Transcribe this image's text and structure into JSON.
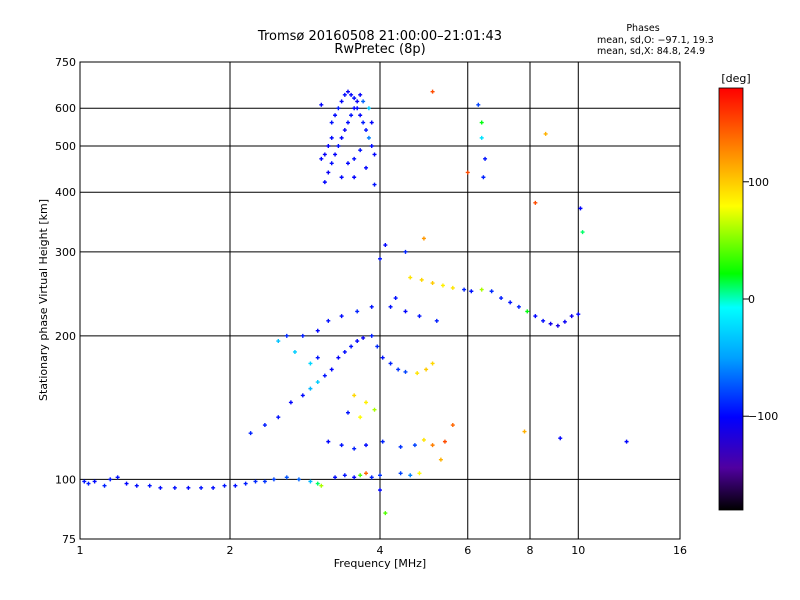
{
  "header": {
    "title_line1": "Tromsø 20160508 21:00:00–21:01:43",
    "title_line2": "RwPretec (8p)",
    "phase_block_title": "Phases",
    "phase_o": "mean, sd,O: −97.1, 19.3",
    "phase_x": "mean, sd,X:  84.8, 24.9"
  },
  "colorbar": {
    "unit": "[deg]",
    "tick_labels": [
      "100",
      "0",
      "−100"
    ],
    "tick_values": [
      100,
      0,
      -100
    ],
    "range": [
      -180,
      180
    ],
    "colormap": "rainbow"
  },
  "chart_data": {
    "type": "scatter",
    "xlabel": "Frequency [MHz]",
    "ylabel": "Stationary phase Virtual Height [km]",
    "x_scale": "log",
    "y_scale": "log",
    "xlim": [
      1,
      16
    ],
    "ylim": [
      75,
      750
    ],
    "x_ticks": [
      1,
      2,
      4,
      6,
      8,
      10,
      16
    ],
    "x_tick_labels": [
      "1",
      "2",
      "4",
      "6",
      "8",
      "10",
      "16"
    ],
    "y_ticks": [
      75,
      100,
      200,
      300,
      400,
      500,
      600,
      750
    ],
    "y_tick_labels": [
      "75",
      "100",
      "200",
      "300",
      "400",
      "500",
      "600",
      "750"
    ],
    "grid_x": [
      2,
      4,
      6,
      8,
      10
    ],
    "grid_y": [
      100,
      200,
      300,
      400,
      500,
      600
    ],
    "color_variable": "phase [deg]",
    "series": [
      {
        "points": [
          [
            1.02,
            99,
            -95
          ],
          [
            1.04,
            98,
            -92
          ],
          [
            1.07,
            99,
            -98
          ],
          [
            1.12,
            97,
            -90
          ],
          [
            1.15,
            100,
            -94
          ],
          [
            1.19,
            101,
            -96
          ],
          [
            1.24,
            98,
            -100
          ],
          [
            1.3,
            97,
            -97
          ],
          [
            1.38,
            97,
            -95
          ],
          [
            1.45,
            96,
            -98
          ],
          [
            1.55,
            96,
            -96
          ],
          [
            1.65,
            96,
            -99
          ],
          [
            1.75,
            96,
            -95
          ],
          [
            1.85,
            96,
            -97
          ],
          [
            1.95,
            97,
            -94
          ],
          [
            2.05,
            97,
            -96
          ],
          [
            2.15,
            98,
            -92
          ],
          [
            2.25,
            99,
            -88
          ],
          [
            2.35,
            99,
            -85
          ],
          [
            2.45,
            100,
            -80
          ],
          [
            2.6,
            101,
            -75
          ],
          [
            2.75,
            100,
            -70
          ],
          [
            2.9,
            99,
            -40
          ],
          [
            3.0,
            98,
            10
          ],
          [
            3.05,
            97,
            60
          ],
          [
            3.25,
            101,
            -98
          ],
          [
            3.4,
            102,
            -95
          ],
          [
            3.55,
            101,
            -100
          ],
          [
            3.65,
            102,
            40
          ],
          [
            3.75,
            103,
            140
          ],
          [
            3.85,
            101,
            -90
          ],
          [
            4.0,
            102,
            -85
          ],
          [
            4.4,
            103,
            -80
          ],
          [
            4.6,
            102,
            -60
          ],
          [
            4.8,
            103,
            80
          ],
          [
            3.15,
            120,
            -100
          ],
          [
            3.35,
            118,
            -95
          ],
          [
            3.55,
            116,
            -92
          ],
          [
            3.75,
            118,
            -98
          ],
          [
            4.05,
            120,
            -90
          ],
          [
            4.4,
            117,
            -85
          ],
          [
            4.7,
            118,
            -80
          ],
          [
            4.9,
            121,
            90
          ],
          [
            5.1,
            118,
            130
          ],
          [
            5.4,
            120,
            150
          ],
          [
            2.2,
            125,
            -90
          ],
          [
            2.35,
            130,
            -92
          ],
          [
            2.5,
            135,
            -96
          ],
          [
            2.65,
            145,
            -100
          ],
          [
            2.8,
            150,
            -98
          ],
          [
            2.9,
            155,
            -40
          ],
          [
            3.0,
            160,
            -30
          ],
          [
            3.1,
            165,
            -95
          ],
          [
            3.2,
            170,
            -100
          ],
          [
            3.3,
            180,
            -102
          ],
          [
            3.4,
            185,
            -98
          ],
          [
            3.5,
            190,
            -96
          ],
          [
            3.6,
            195,
            -100
          ],
          [
            3.7,
            198,
            -104
          ],
          [
            3.85,
            200,
            -92
          ],
          [
            3.95,
            190,
            -88
          ],
          [
            4.05,
            180,
            -95
          ],
          [
            4.2,
            175,
            -90
          ],
          [
            4.35,
            170,
            -85
          ],
          [
            4.5,
            168,
            -80
          ],
          [
            4.75,
            167,
            90
          ],
          [
            4.95,
            170,
            100
          ],
          [
            5.1,
            175,
            95
          ],
          [
            3.55,
            150,
            95
          ],
          [
            3.75,
            145,
            85
          ],
          [
            3.9,
            140,
            60
          ],
          [
            3.65,
            135,
            80
          ],
          [
            3.45,
            138,
            -95
          ],
          [
            3.85,
            230,
            -95
          ],
          [
            3.6,
            225,
            -90
          ],
          [
            3.35,
            220,
            -98
          ],
          [
            3.15,
            215,
            -96
          ],
          [
            3.0,
            205,
            -100
          ],
          [
            2.8,
            200,
            -92
          ],
          [
            2.6,
            200,
            -88
          ],
          [
            2.5,
            195,
            -35
          ],
          [
            2.7,
            185,
            -30
          ],
          [
            2.9,
            175,
            -25
          ],
          [
            3.0,
            180,
            -95
          ],
          [
            4.2,
            230,
            -96
          ],
          [
            4.5,
            225,
            -100
          ],
          [
            4.8,
            220,
            -95
          ],
          [
            5.2,
            215,
            -92
          ],
          [
            4.6,
            265,
            90
          ],
          [
            4.85,
            262,
            95
          ],
          [
            5.1,
            258,
            100
          ],
          [
            5.35,
            255,
            85
          ],
          [
            5.6,
            252,
            90
          ],
          [
            5.9,
            250,
            -90
          ],
          [
            6.1,
            248,
            -95
          ],
          [
            6.4,
            250,
            60
          ],
          [
            6.7,
            248,
            -88
          ],
          [
            7.0,
            240,
            -92
          ],
          [
            7.3,
            235,
            -95
          ],
          [
            7.6,
            230,
            -90
          ],
          [
            7.9,
            225,
            20
          ],
          [
            8.2,
            220,
            -100
          ],
          [
            8.5,
            215,
            -98
          ],
          [
            8.8,
            212,
            -110
          ],
          [
            9.1,
            210,
            -112
          ],
          [
            9.4,
            214,
            -105
          ],
          [
            9.7,
            220,
            -108
          ],
          [
            10.0,
            222,
            -100
          ],
          [
            6.3,
            610,
            -80
          ],
          [
            6.4,
            560,
            20
          ],
          [
            6.4,
            520,
            -20
          ],
          [
            6.5,
            470,
            -95
          ],
          [
            6.45,
            430,
            -90
          ],
          [
            6.0,
            440,
            150
          ],
          [
            5.1,
            650,
            150
          ],
          [
            8.2,
            380,
            150
          ],
          [
            8.6,
            530,
            110
          ],
          [
            10.1,
            370,
            -100
          ],
          [
            10.2,
            330,
            10
          ],
          [
            12.5,
            120,
            -100
          ],
          [
            9.2,
            122,
            -100
          ],
          [
            7.8,
            126,
            110
          ],
          [
            4.3,
            240,
            -96
          ],
          [
            4.0,
            290,
            -95
          ],
          [
            4.1,
            310,
            -100
          ],
          [
            4.5,
            300,
            -90
          ],
          [
            4.9,
            320,
            120
          ],
          [
            3.05,
            610,
            -100
          ],
          [
            3.9,
            415,
            -95
          ],
          [
            4.1,
            85,
            40
          ],
          [
            4.0,
            95,
            -100
          ],
          [
            5.6,
            130,
            140
          ],
          [
            5.3,
            110,
            110
          ]
        ]
      },
      {
        "points": [
          [
            3.1,
            420,
            -100
          ],
          [
            3.15,
            440,
            -105
          ],
          [
            3.2,
            460,
            -98
          ],
          [
            3.25,
            480,
            -102
          ],
          [
            3.3,
            500,
            -96
          ],
          [
            3.35,
            520,
            -100
          ],
          [
            3.4,
            540,
            -104
          ],
          [
            3.45,
            560,
            -98
          ],
          [
            3.5,
            580,
            -95
          ],
          [
            3.55,
            600,
            -100
          ],
          [
            3.6,
            620,
            -105
          ],
          [
            3.65,
            640,
            -102
          ],
          [
            3.2,
            560,
            -96
          ],
          [
            3.25,
            580,
            -98
          ],
          [
            3.3,
            600,
            -92
          ],
          [
            3.35,
            620,
            -100
          ],
          [
            3.4,
            640,
            -98
          ],
          [
            3.45,
            650,
            -105
          ],
          [
            3.5,
            640,
            -100
          ],
          [
            3.55,
            630,
            -96
          ],
          [
            3.6,
            600,
            -98
          ],
          [
            3.65,
            580,
            -100
          ],
          [
            3.7,
            560,
            -92
          ],
          [
            3.75,
            540,
            -95
          ],
          [
            3.8,
            520,
            -60
          ],
          [
            3.85,
            500,
            -98
          ],
          [
            3.9,
            480,
            -100
          ],
          [
            3.8,
            600,
            -30
          ],
          [
            3.7,
            620,
            -70
          ],
          [
            3.15,
            500,
            -102
          ],
          [
            3.2,
            520,
            -98
          ],
          [
            3.05,
            470,
            -100
          ],
          [
            3.1,
            480,
            -104
          ],
          [
            3.45,
            460,
            -100
          ],
          [
            3.55,
            470,
            -98
          ],
          [
            3.65,
            490,
            -96
          ],
          [
            3.75,
            450,
            -100
          ],
          [
            3.35,
            430,
            -99
          ],
          [
            3.55,
            430,
            -101
          ],
          [
            3.85,
            560,
            -100
          ]
        ]
      }
    ]
  }
}
